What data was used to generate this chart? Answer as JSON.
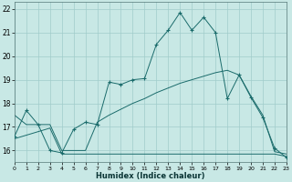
{
  "xlabel": "Humidex (Indice chaleur)",
  "background_color": "#c8e8e5",
  "grid_color": "#a0ccca",
  "line_color": "#1a6b6b",
  "xlim": [
    0,
    23
  ],
  "ylim": [
    15.5,
    22.3
  ],
  "xticks": [
    0,
    1,
    2,
    3,
    4,
    5,
    6,
    7,
    8,
    9,
    10,
    11,
    12,
    13,
    14,
    15,
    16,
    17,
    18,
    19,
    20,
    21,
    22,
    23
  ],
  "yticks": [
    16,
    17,
    18,
    19,
    20,
    21,
    22
  ],
  "curve1_x": [
    0,
    1,
    2,
    3,
    4,
    5,
    6,
    7,
    8,
    9,
    10,
    11,
    12,
    13,
    14,
    15,
    16,
    17,
    18,
    19,
    20,
    21,
    22,
    23
  ],
  "curve1_y": [
    16.6,
    17.7,
    17.1,
    16.0,
    15.9,
    16.9,
    17.2,
    17.1,
    18.9,
    18.8,
    19.0,
    19.05,
    20.5,
    21.1,
    21.85,
    21.1,
    21.65,
    21.0,
    18.2,
    19.2,
    18.25,
    17.4,
    16.1,
    15.7
  ],
  "curve2_x": [
    0,
    1,
    2,
    3,
    4,
    5,
    6,
    7,
    8,
    9,
    10,
    11,
    12,
    13,
    14,
    15,
    16,
    17,
    18,
    19,
    20,
    21,
    22,
    23
  ],
  "curve2_y": [
    17.5,
    17.1,
    17.1,
    17.1,
    16.0,
    16.0,
    16.0,
    17.2,
    17.5,
    17.75,
    18.0,
    18.2,
    18.45,
    18.65,
    18.85,
    19.0,
    19.15,
    19.3,
    19.4,
    19.2,
    18.3,
    17.5,
    15.95,
    15.85
  ],
  "curve3_x": [
    0,
    1,
    2,
    3,
    4,
    5,
    6,
    7,
    8,
    9,
    10,
    11,
    12,
    13,
    14,
    15,
    16,
    17,
    18,
    19,
    20,
    21,
    22,
    23
  ],
  "curve3_y": [
    16.5,
    16.65,
    16.8,
    16.95,
    15.85,
    15.85,
    15.85,
    15.85,
    15.85,
    15.85,
    15.85,
    15.85,
    15.85,
    15.85,
    15.85,
    15.85,
    15.85,
    15.85,
    15.85,
    15.85,
    15.85,
    15.85,
    15.85,
    15.75
  ]
}
